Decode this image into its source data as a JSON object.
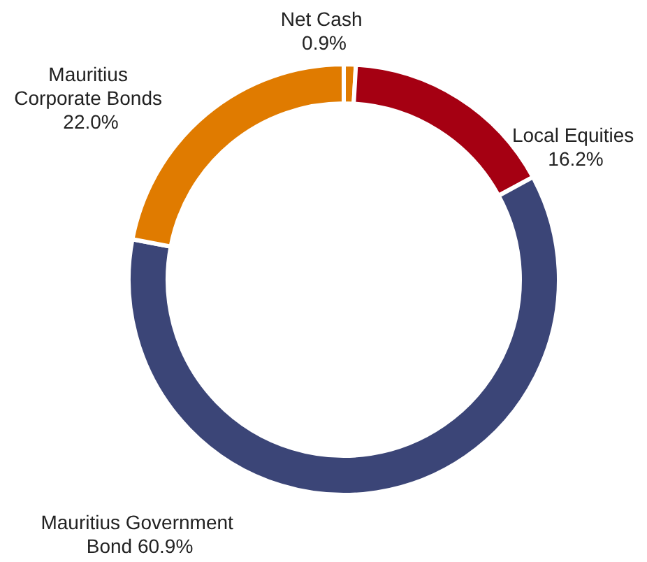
{
  "chart_data": {
    "type": "donut",
    "categories": [
      "Net Cash",
      "Local Equities",
      "Mauritius Government Bond",
      "Mauritius Corporate Bonds"
    ],
    "values": [
      0.9,
      16.2,
      60.9,
      22.0
    ],
    "value_labels": [
      "0.9%",
      "16.2%",
      "60.9%",
      "22.0%"
    ],
    "colors": [
      "#e07b00",
      "#a50012",
      "#3b4577",
      "#e07b00"
    ],
    "legend": false
  }
}
